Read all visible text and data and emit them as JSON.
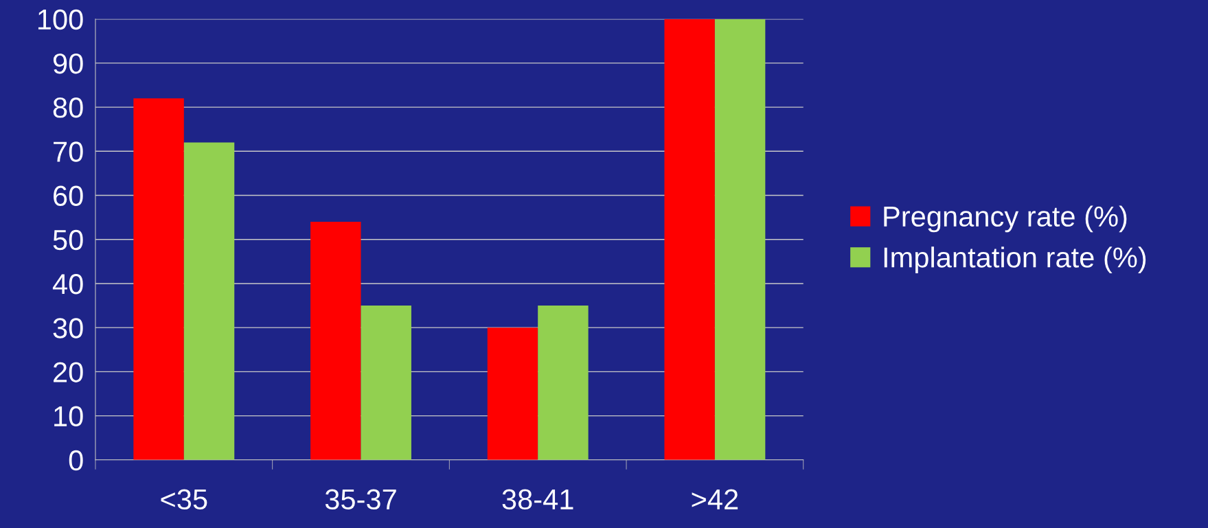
{
  "chart_data": {
    "type": "bar",
    "categories": [
      "<35",
      "35-37",
      "38-41",
      ">42"
    ],
    "series": [
      {
        "name": "Pregnancy rate (%)",
        "color": "#ff0000",
        "values": [
          82,
          54,
          30,
          100
        ]
      },
      {
        "name": "Implantation rate (%)",
        "color": "#92d050",
        "values": [
          72,
          35,
          35,
          100
        ]
      }
    ],
    "ylim": [
      0,
      100
    ],
    "yticks": [
      0,
      10,
      20,
      30,
      40,
      50,
      60,
      70,
      80,
      90,
      100
    ],
    "grid": "y",
    "legend": "right"
  }
}
